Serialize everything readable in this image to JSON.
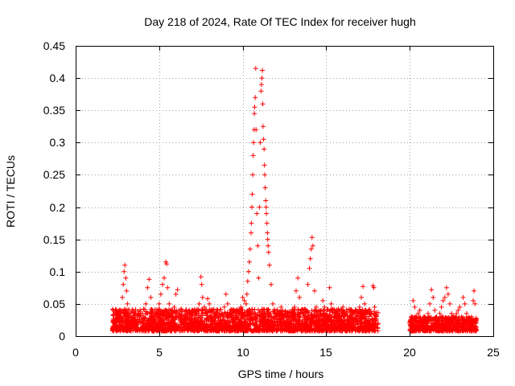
{
  "chart_data": {
    "type": "scatter",
    "title": "Day 218 of 2024, Rate Of TEC Index for receiver hugh",
    "xlabel": "GPS time / hours",
    "ylabel": "ROTI / TECUs",
    "xlim": [
      0,
      25
    ],
    "ylim": [
      0,
      0.45
    ],
    "xticks": [
      0,
      5,
      10,
      15,
      20,
      25
    ],
    "xtick_labels": [
      "0",
      "5",
      "10",
      "15",
      "20",
      "25"
    ],
    "yticks": [
      0,
      0.05,
      0.1,
      0.15,
      0.2,
      0.25,
      0.3,
      0.35,
      0.4,
      0.45
    ],
    "ytick_labels": [
      "0",
      "0.05",
      "0.1",
      "0.15",
      "0.2",
      "0.25",
      "0.3",
      "0.35",
      "0.4",
      "0.45"
    ],
    "grid": true,
    "marker": "+",
    "color": "#ff0000",
    "series": [
      {
        "name": "ROTI",
        "points": [
          [
            2.2,
            0.012
          ],
          [
            2.3,
            0.02
          ],
          [
            2.4,
            0.035
          ],
          [
            2.5,
            0.015
          ],
          [
            2.6,
            0.04
          ],
          [
            2.7,
            0.025
          ],
          [
            2.8,
            0.06
          ],
          [
            2.85,
            0.08
          ],
          [
            2.9,
            0.1
          ],
          [
            2.95,
            0.11
          ],
          [
            3.0,
            0.09
          ],
          [
            3.05,
            0.07
          ],
          [
            3.1,
            0.05
          ],
          [
            3.2,
            0.03
          ],
          [
            3.3,
            0.02
          ],
          [
            3.4,
            0.015
          ],
          [
            3.5,
            0.025
          ],
          [
            3.6,
            0.02
          ],
          [
            3.7,
            0.018
          ],
          [
            3.8,
            0.03
          ],
          [
            3.9,
            0.022
          ],
          [
            4.0,
            0.035
          ],
          [
            4.1,
            0.028
          ],
          [
            4.2,
            0.05
          ],
          [
            4.3,
            0.075
          ],
          [
            4.4,
            0.088
          ],
          [
            4.5,
            0.06
          ],
          [
            4.6,
            0.04
          ],
          [
            4.7,
            0.03
          ],
          [
            4.8,
            0.025
          ],
          [
            4.9,
            0.035
          ],
          [
            5.0,
            0.05
          ],
          [
            5.1,
            0.065
          ],
          [
            5.2,
            0.08
          ],
          [
            5.3,
            0.09
          ],
          [
            5.4,
            0.115
          ],
          [
            5.45,
            0.112
          ],
          [
            5.5,
            0.075
          ],
          [
            5.6,
            0.05
          ],
          [
            5.7,
            0.04
          ],
          [
            5.8,
            0.03
          ],
          [
            5.9,
            0.045
          ],
          [
            6.0,
            0.065
          ],
          [
            6.1,
            0.072
          ],
          [
            6.2,
            0.04
          ],
          [
            6.3,
            0.03
          ],
          [
            6.4,
            0.02
          ],
          [
            6.5,
            0.015
          ],
          [
            6.6,
            0.025
          ],
          [
            6.7,
            0.018
          ],
          [
            6.8,
            0.02
          ],
          [
            6.9,
            0.015
          ],
          [
            7.0,
            0.022
          ],
          [
            7.2,
            0.035
          ],
          [
            7.4,
            0.05
          ],
          [
            7.5,
            0.092
          ],
          [
            7.55,
            0.08
          ],
          [
            7.6,
            0.06
          ],
          [
            7.7,
            0.045
          ],
          [
            7.8,
            0.035
          ],
          [
            7.9,
            0.058
          ],
          [
            8.0,
            0.05
          ],
          [
            8.1,
            0.03
          ],
          [
            8.2,
            0.025
          ],
          [
            8.3,
            0.02
          ],
          [
            8.4,
            0.03
          ],
          [
            8.5,
            0.04
          ],
          [
            8.6,
            0.035
          ],
          [
            8.7,
            0.025
          ],
          [
            8.8,
            0.03
          ],
          [
            8.9,
            0.045
          ],
          [
            9.0,
            0.065
          ],
          [
            9.1,
            0.05
          ],
          [
            9.2,
            0.035
          ],
          [
            9.3,
            0.03
          ],
          [
            9.4,
            0.025
          ],
          [
            9.5,
            0.04
          ],
          [
            9.6,
            0.03
          ],
          [
            9.7,
            0.02
          ],
          [
            9.8,
            0.035
          ],
          [
            9.9,
            0.045
          ],
          [
            10.0,
            0.06
          ],
          [
            10.1,
            0.055
          ],
          [
            10.2,
            0.05
          ],
          [
            10.25,
            0.065
          ],
          [
            10.3,
            0.085
          ],
          [
            10.35,
            0.1
          ],
          [
            10.4,
            0.115
          ],
          [
            10.45,
            0.135
          ],
          [
            10.5,
            0.16
          ],
          [
            10.52,
            0.175
          ],
          [
            10.55,
            0.2
          ],
          [
            10.58,
            0.22
          ],
          [
            10.6,
            0.25
          ],
          [
            10.62,
            0.28
          ],
          [
            10.65,
            0.3
          ],
          [
            10.68,
            0.32
          ],
          [
            10.7,
            0.345
          ],
          [
            10.72,
            0.355
          ],
          [
            10.75,
            0.37
          ],
          [
            10.78,
            0.415
          ],
          [
            10.8,
            0.32
          ],
          [
            10.85,
            0.19
          ],
          [
            10.9,
            0.14
          ],
          [
            10.95,
            0.09
          ],
          [
            11.0,
            0.2
          ],
          [
            11.05,
            0.3
          ],
          [
            11.1,
            0.38
          ],
          [
            11.12,
            0.39
          ],
          [
            11.15,
            0.4
          ],
          [
            11.18,
            0.412
          ],
          [
            11.2,
            0.36
          ],
          [
            11.22,
            0.325
          ],
          [
            11.25,
            0.305
          ],
          [
            11.28,
            0.29
          ],
          [
            11.3,
            0.265
          ],
          [
            11.32,
            0.25
          ],
          [
            11.35,
            0.23
          ],
          [
            11.38,
            0.21
          ],
          [
            11.4,
            0.2
          ],
          [
            11.42,
            0.19
          ],
          [
            11.45,
            0.175
          ],
          [
            11.48,
            0.16
          ],
          [
            11.5,
            0.15
          ],
          [
            11.52,
            0.14
          ],
          [
            11.55,
            0.13
          ],
          [
            11.6,
            0.11
          ],
          [
            11.7,
            0.08
          ],
          [
            11.8,
            0.05
          ],
          [
            11.9,
            0.035
          ],
          [
            12.0,
            0.03
          ],
          [
            12.1,
            0.025
          ],
          [
            12.2,
            0.035
          ],
          [
            12.3,
            0.045
          ],
          [
            12.4,
            0.03
          ],
          [
            12.5,
            0.02
          ],
          [
            12.6,
            0.025
          ],
          [
            12.7,
            0.03
          ],
          [
            12.8,
            0.028
          ],
          [
            12.9,
            0.035
          ],
          [
            13.0,
            0.04
          ],
          [
            13.1,
            0.045
          ],
          [
            13.2,
            0.07
          ],
          [
            13.3,
            0.09
          ],
          [
            13.4,
            0.06
          ],
          [
            13.5,
            0.04
          ],
          [
            13.6,
            0.035
          ],
          [
            13.7,
            0.03
          ],
          [
            13.8,
            0.04
          ],
          [
            13.9,
            0.08
          ],
          [
            14.0,
            0.105
          ],
          [
            14.05,
            0.12
          ],
          [
            14.1,
            0.135
          ],
          [
            14.15,
            0.153
          ],
          [
            14.2,
            0.14
          ],
          [
            14.3,
            0.07
          ],
          [
            14.4,
            0.045
          ],
          [
            14.5,
            0.035
          ],
          [
            14.6,
            0.03
          ],
          [
            14.7,
            0.04
          ],
          [
            14.8,
            0.055
          ],
          [
            14.9,
            0.045
          ],
          [
            15.0,
            0.035
          ],
          [
            15.1,
            0.03
          ],
          [
            15.2,
            0.075
          ],
          [
            15.3,
            0.05
          ],
          [
            15.4,
            0.04
          ],
          [
            15.5,
            0.035
          ],
          [
            15.6,
            0.03
          ],
          [
            15.7,
            0.025
          ],
          [
            15.8,
            0.03
          ],
          [
            15.9,
            0.04
          ],
          [
            16.0,
            0.045
          ],
          [
            16.2,
            0.035
          ],
          [
            16.4,
            0.03
          ],
          [
            16.6,
            0.025
          ],
          [
            16.8,
            0.03
          ],
          [
            17.0,
            0.045
          ],
          [
            17.1,
            0.06
          ],
          [
            17.2,
            0.077
          ],
          [
            17.3,
            0.05
          ],
          [
            17.4,
            0.03
          ],
          [
            17.5,
            0.025
          ],
          [
            17.6,
            0.02
          ],
          [
            17.7,
            0.035
          ],
          [
            17.8,
            0.078
          ],
          [
            17.85,
            0.075
          ],
          [
            17.9,
            0.045
          ],
          [
            18.0,
            0.03
          ],
          [
            18.1,
            0.02
          ],
          [
            20.1,
            0.015
          ],
          [
            20.2,
            0.055
          ],
          [
            20.3,
            0.045
          ],
          [
            20.4,
            0.03
          ],
          [
            20.5,
            0.035
          ],
          [
            20.6,
            0.04
          ],
          [
            20.7,
            0.025
          ],
          [
            20.8,
            0.02
          ],
          [
            20.9,
            0.03
          ],
          [
            21.0,
            0.025
          ],
          [
            21.1,
            0.035
          ],
          [
            21.2,
            0.05
          ],
          [
            21.3,
            0.072
          ],
          [
            21.4,
            0.06
          ],
          [
            21.5,
            0.04
          ],
          [
            21.6,
            0.03
          ],
          [
            21.7,
            0.025
          ],
          [
            21.8,
            0.035
          ],
          [
            21.9,
            0.045
          ],
          [
            22.0,
            0.055
          ],
          [
            22.1,
            0.06
          ],
          [
            22.2,
            0.075
          ],
          [
            22.3,
            0.065
          ],
          [
            22.4,
            0.05
          ],
          [
            22.5,
            0.035
          ],
          [
            22.6,
            0.03
          ],
          [
            22.7,
            0.025
          ],
          [
            22.8,
            0.035
          ],
          [
            22.9,
            0.04
          ],
          [
            23.0,
            0.045
          ],
          [
            23.1,
            0.03
          ],
          [
            23.2,
            0.06
          ],
          [
            23.3,
            0.05
          ],
          [
            23.4,
            0.035
          ],
          [
            23.5,
            0.025
          ],
          [
            23.6,
            0.02
          ],
          [
            23.7,
            0.03
          ],
          [
            23.8,
            0.055
          ],
          [
            23.85,
            0.07
          ],
          [
            23.9,
            0.05
          ],
          [
            24.0,
            0.025
          ]
        ]
      }
    ],
    "baseline_segments": [
      {
        "x_start": 2.2,
        "x_end": 18.1,
        "y_min": 0.008,
        "y_max": 0.042
      },
      {
        "x_start": 20.0,
        "x_end": 24.0,
        "y_min": 0.008,
        "y_max": 0.03
      }
    ]
  }
}
